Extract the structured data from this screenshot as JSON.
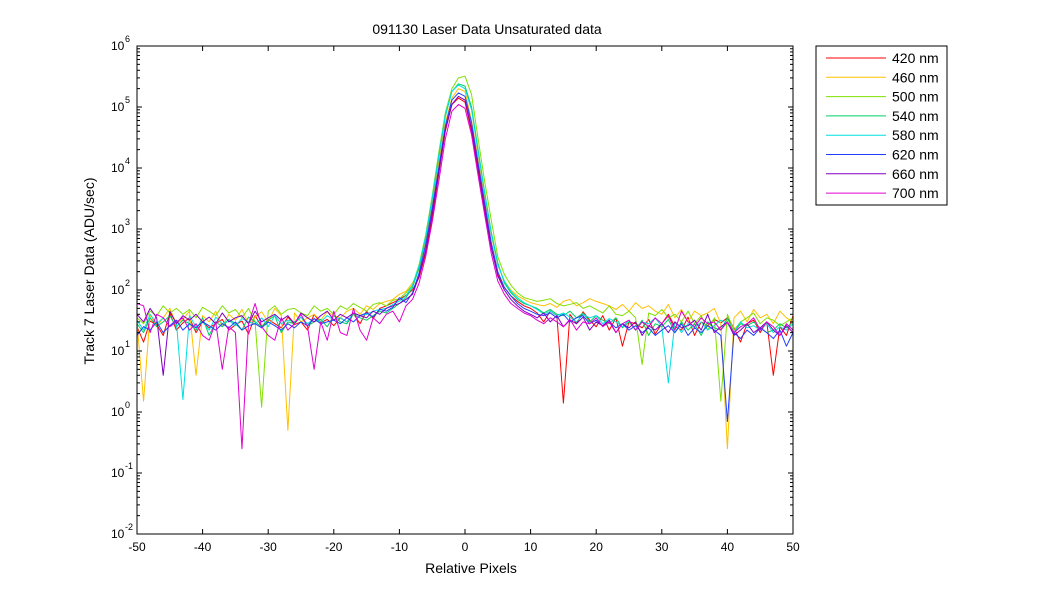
{
  "chart_data": {
    "type": "line",
    "title": "091130 Laser Data  Unsaturated data",
    "xlabel": "Relative Pixels",
    "ylabel": "Track 7 Laser Data (ADU/sec)",
    "xlim": [
      -50,
      50
    ],
    "ylim": [
      0.01,
      1000000
    ],
    "yscale": "log",
    "grid": false,
    "legend_position": "outside-top-right",
    "x_ticks": [
      "-50",
      "-40",
      "-30",
      "-20",
      "-10",
      "0",
      "10",
      "20",
      "30",
      "40",
      "50"
    ],
    "y_ticks": [
      {
        "base": "10",
        "exp": "-2"
      },
      {
        "base": "10",
        "exp": "-1"
      },
      {
        "base": "10",
        "exp": "0"
      },
      {
        "base": "10",
        "exp": "1"
      },
      {
        "base": "10",
        "exp": "2"
      },
      {
        "base": "10",
        "exp": "3"
      },
      {
        "base": "10",
        "exp": "4"
      },
      {
        "base": "10",
        "exp": "5"
      },
      {
        "base": "10",
        "exp": "6"
      }
    ],
    "x": [
      -50,
      -49,
      -48,
      -47,
      -46,
      -45,
      -44,
      -43,
      -42,
      -41,
      -40,
      -39,
      -38,
      -37,
      -36,
      -35,
      -34,
      -33,
      -32,
      -31,
      -30,
      -29,
      -28,
      -27,
      -26,
      -25,
      -24,
      -23,
      -22,
      -21,
      -20,
      -19,
      -18,
      -17,
      -16,
      -15,
      -14,
      -13,
      -12,
      -11,
      -10,
      -9,
      -8,
      -7,
      -6,
      -5,
      -4,
      -3,
      -2,
      -1,
      0,
      1,
      2,
      3,
      4,
      5,
      6,
      7,
      8,
      9,
      10,
      11,
      12,
      13,
      14,
      15,
      16,
      17,
      18,
      19,
      20,
      21,
      22,
      23,
      24,
      25,
      26,
      27,
      28,
      29,
      30,
      31,
      32,
      33,
      34,
      35,
      36,
      37,
      38,
      39,
      40,
      41,
      42,
      43,
      44,
      45,
      46,
      47,
      48,
      49,
      50
    ],
    "series": [
      {
        "name": "420 nm",
        "color": "#ff0000",
        "values": [
          25,
          14,
          31,
          27,
          18,
          42,
          22,
          29,
          35,
          20,
          30,
          24,
          28,
          33,
          22,
          27,
          31,
          19,
          38,
          25,
          33,
          28,
          24,
          36,
          27,
          30,
          22,
          40,
          29,
          33,
          26,
          35,
          30,
          41,
          28,
          45,
          34,
          50,
          55,
          62,
          70,
          82,
          100,
          160,
          400,
          1500,
          8000,
          40000,
          110000,
          140000,
          120000,
          40000,
          9000,
          2000,
          500,
          180,
          110,
          80,
          65,
          55,
          50,
          42,
          30,
          45,
          38,
          1.4,
          40,
          28,
          44,
          32,
          25,
          38,
          22,
          35,
          12,
          30,
          28,
          24,
          33,
          19,
          28,
          40,
          25,
          22,
          36,
          18,
          30,
          26,
          33,
          29,
          35,
          24,
          14,
          28,
          32,
          20,
          30,
          4,
          25,
          18,
          38
        ]
      },
      {
        "name": "460 nm",
        "color": "#ffc000",
        "values": [
          30,
          1.5,
          40,
          25,
          35,
          50,
          28,
          33,
          45,
          4,
          38,
          30,
          45,
          25,
          40,
          32,
          48,
          28,
          36,
          44,
          30,
          50,
          38,
          0.5,
          42,
          30,
          35,
          40,
          32,
          44,
          38,
          35,
          45,
          50,
          40,
          55,
          48,
          60,
          65,
          70,
          85,
          95,
          130,
          220,
          600,
          2400,
          12000,
          55000,
          140000,
          200000,
          180000,
          60000,
          14000,
          3200,
          800,
          250,
          140,
          100,
          80,
          70,
          62,
          58,
          55,
          60,
          52,
          65,
          70,
          55,
          62,
          72,
          65,
          60,
          55,
          48,
          58,
          45,
          62,
          50,
          55,
          45,
          40,
          58,
          35,
          48,
          30,
          45,
          38,
          42,
          50,
          28,
          0.25,
          35,
          45,
          30,
          48,
          35,
          40,
          28,
          45,
          35,
          30
        ]
      },
      {
        "name": "500 nm",
        "color": "#80e000",
        "values": [
          35,
          28,
          45,
          38,
          55,
          42,
          50,
          40,
          48,
          35,
          52,
          45,
          38,
          55,
          42,
          48,
          35,
          50,
          30,
          1.2,
          45,
          55,
          40,
          48,
          50,
          42,
          38,
          55,
          45,
          50,
          40,
          55,
          48,
          60,
          52,
          45,
          58,
          62,
          55,
          68,
          72,
          90,
          120,
          260,
          800,
          3500,
          18000,
          80000,
          200000,
          300000,
          320000,
          160000,
          30000,
          6000,
          1400,
          350,
          180,
          120,
          90,
          75,
          70,
          65,
          68,
          72,
          60,
          55,
          58,
          62,
          50,
          55,
          48,
          42,
          55,
          40,
          38,
          45,
          35,
          6,
          42,
          38,
          48,
          35,
          40,
          30,
          45,
          28,
          38,
          22,
          35,
          1.5,
          40,
          22,
          30,
          35,
          42,
          28,
          35,
          32,
          26,
          30,
          35
        ]
      },
      {
        "name": "540 nm",
        "color": "#00d060",
        "values": [
          28,
          20,
          35,
          25,
          30,
          38,
          25,
          32,
          28,
          22,
          35,
          18,
          30,
          25,
          33,
          28,
          22,
          36,
          30,
          25,
          32,
          38,
          20,
          30,
          28,
          36,
          26,
          30,
          33,
          25,
          38,
          30,
          28,
          40,
          35,
          32,
          38,
          45,
          42,
          50,
          60,
          75,
          110,
          230,
          700,
          3000,
          15000,
          70000,
          180000,
          240000,
          220000,
          100000,
          20000,
          4000,
          900,
          280,
          130,
          90,
          70,
          60,
          55,
          50,
          42,
          48,
          40,
          38,
          45,
          35,
          42,
          30,
          38,
          32,
          28,
          35,
          24,
          30,
          22,
          32,
          18,
          28,
          25,
          33,
          20,
          30,
          22,
          28,
          18,
          30,
          24,
          22,
          35,
          20,
          28,
          26,
          30,
          24,
          20,
          22,
          28,
          24,
          30
        ]
      },
      {
        "name": "580 nm",
        "color": "#00e0e0",
        "values": [
          32,
          22,
          40,
          28,
          35,
          25,
          30,
          1.6,
          38,
          25,
          30,
          22,
          36,
          28,
          32,
          26,
          34,
          30,
          28,
          35,
          25,
          38,
          28,
          32,
          30,
          36,
          28,
          34,
          30,
          38,
          32,
          35,
          30,
          42,
          38,
          40,
          45,
          48,
          50,
          58,
          66,
          80,
          120,
          250,
          750,
          3200,
          16000,
          75000,
          180000,
          230000,
          200000,
          90000,
          18000,
          3800,
          850,
          260,
          140,
          95,
          75,
          62,
          55,
          48,
          40,
          45,
          38,
          42,
          36,
          30,
          40,
          35,
          38,
          28,
          34,
          30,
          25,
          32,
          22,
          30,
          28,
          35,
          25,
          3,
          30,
          20,
          28,
          24,
          30,
          22,
          26,
          32,
          28,
          20,
          30,
          24,
          26,
          22,
          28,
          20,
          25,
          22,
          28
        ]
      },
      {
        "name": "620 nm",
        "color": "#2040ff",
        "values": [
          18,
          25,
          22,
          30,
          20,
          26,
          32,
          22,
          28,
          24,
          30,
          26,
          22,
          28,
          24,
          30,
          22,
          26,
          28,
          24,
          30,
          26,
          22,
          28,
          24,
          30,
          26,
          34,
          28,
          30,
          32,
          28,
          35,
          30,
          38,
          42,
          36,
          48,
          45,
          52,
          75,
          62,
          90,
          190,
          550,
          2200,
          10000,
          48000,
          130000,
          170000,
          150000,
          55000,
          12000,
          2700,
          600,
          200,
          110,
          80,
          60,
          50,
          45,
          40,
          38,
          42,
          35,
          40,
          30,
          35,
          38,
          28,
          32,
          26,
          30,
          24,
          28,
          22,
          26,
          20,
          24,
          18,
          22,
          26,
          20,
          28,
          18,
          24,
          20,
          26,
          22,
          18,
          0.7,
          20,
          16,
          22,
          18,
          24,
          20,
          16,
          22,
          12,
          20
        ]
      },
      {
        "name": "660 nm",
        "color": "#8000c0",
        "values": [
          40,
          30,
          50,
          35,
          4,
          45,
          28,
          38,
          32,
          40,
          30,
          36,
          28,
          42,
          30,
          35,
          38,
          28,
          45,
          30,
          35,
          40,
          32,
          38,
          28,
          42,
          35,
          30,
          38,
          45,
          32,
          40,
          35,
          42,
          38,
          35,
          45,
          40,
          50,
          55,
          60,
          70,
          85,
          170,
          450,
          1800,
          8500,
          42000,
          110000,
          150000,
          130000,
          45000,
          10000,
          2200,
          500,
          170,
          100,
          70,
          55,
          45,
          40,
          35,
          42,
          30,
          38,
          25,
          32,
          28,
          36,
          22,
          30,
          26,
          32,
          20,
          28,
          24,
          30,
          18,
          26,
          22,
          28,
          20,
          30,
          24,
          26,
          32,
          22,
          40,
          20,
          25,
          30,
          18,
          22,
          28,
          20,
          24,
          30,
          22,
          18,
          26,
          20
        ]
      },
      {
        "name": "700 nm",
        "color": "#e000d0",
        "values": [
          60,
          55,
          20,
          40,
          35,
          25,
          30,
          35,
          22,
          28,
          18,
          15,
          30,
          5,
          25,
          20,
          0.25,
          28,
          60,
          25,
          18,
          15,
          35,
          22,
          28,
          40,
          25,
          5,
          30,
          15,
          45,
          20,
          18,
          50,
          22,
          15,
          35,
          28,
          40,
          45,
          30,
          55,
          70,
          130,
          350,
          1300,
          6000,
          30000,
          85000,
          110000,
          95000,
          35000,
          7500,
          1700,
          400,
          140,
          85,
          60,
          50,
          42,
          38,
          32,
          28,
          35,
          30,
          25,
          33,
          22,
          30,
          28,
          35,
          25,
          30,
          20,
          28,
          32,
          22,
          30,
          25,
          35,
          28,
          38,
          22,
          45,
          30,
          25,
          35,
          28,
          30,
          22,
          30,
          20,
          25,
          28,
          35,
          22,
          30,
          25,
          18,
          28,
          22
        ]
      }
    ]
  }
}
